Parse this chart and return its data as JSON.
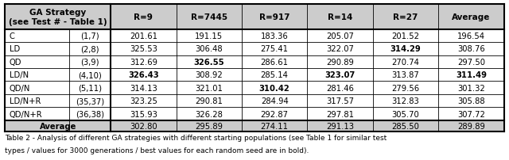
{
  "col_headers": [
    "GA Strategy\n(see Test # - Table 1)",
    "R=9",
    "R=7445",
    "R=917",
    "R=14",
    "R=27",
    "Average"
  ],
  "rows": [
    [
      "C",
      "(1,7)",
      "201.61",
      "191.15",
      "183.36",
      "205.07",
      "201.52",
      "196.54"
    ],
    [
      "LD",
      "(2,8)",
      "325.53",
      "306.48",
      "275.41",
      "322.07",
      "314.29",
      "308.76"
    ],
    [
      "QD",
      "(3,9)",
      "312.69",
      "326.55",
      "286.61",
      "290.89",
      "270.74",
      "297.50"
    ],
    [
      "LD/N",
      "(4,10)",
      "326.43",
      "308.92",
      "285.14",
      "323.07",
      "313.87",
      "311.49"
    ],
    [
      "QD/N",
      "(5,11)",
      "314.13",
      "321.01",
      "310.42",
      "281.46",
      "279.56",
      "301.32"
    ],
    [
      "LD/N+R",
      "(35,37)",
      "323.25",
      "290.81",
      "284.94",
      "317.57",
      "312.83",
      "305.88"
    ],
    [
      "QD/N+R",
      "(36,38)",
      "315.93",
      "326.28",
      "292.87",
      "297.81",
      "305.70",
      "307.72"
    ]
  ],
  "avg_row": [
    "302.80",
    "295.89",
    "274.11",
    "291.13",
    "285.50",
    "289.89"
  ],
  "bold_cells": {
    "1": [
      6
    ],
    "2": [
      3
    ],
    "3": [
      2,
      5,
      7
    ],
    "4": [
      4
    ]
  },
  "caption_line1": "Table 2 - Analysis of different GA strategies with different starting populations (see Table 1 for similar test",
  "caption_line2": "types / values for 3000 generations / best values for each random seed are in bold).",
  "hdr_bg": "#cccccc",
  "avg_bg": "#cccccc",
  "white": "#ffffff"
}
